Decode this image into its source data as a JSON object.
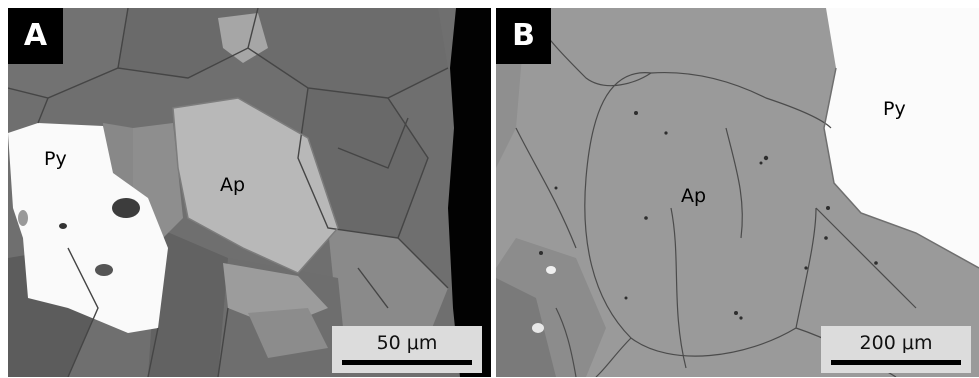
{
  "figure": {
    "panels": [
      {
        "letter": "A",
        "labels": {
          "pyrite": "Py",
          "apatite": "Ap"
        },
        "scale_bar": "50 μm"
      },
      {
        "letter": "B",
        "labels": {
          "pyrite": "Py",
          "apatite": "Ap"
        },
        "scale_bar": "200 μm"
      }
    ]
  }
}
